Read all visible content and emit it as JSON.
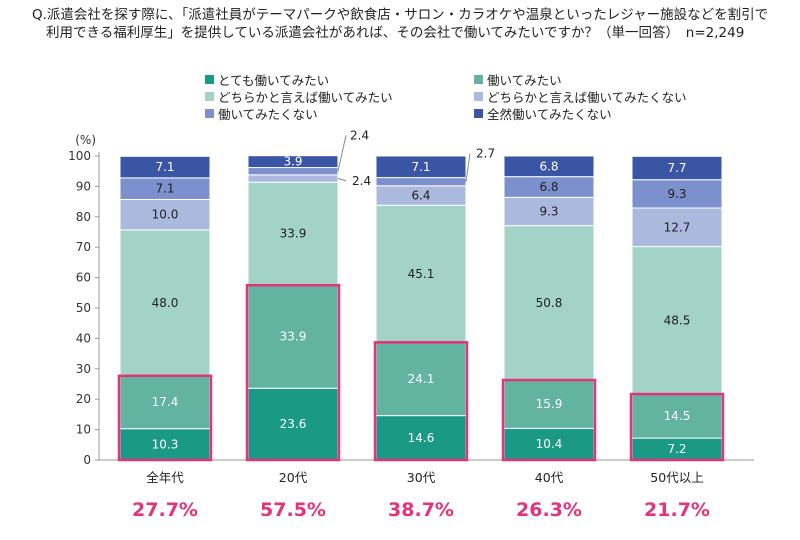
{
  "title": {
    "line1": "Q.派遣会社を探す際に、「派遣社員がテーマパークや飲食店・サロン・カラオケや温泉といったレジャー施設などを割引で",
    "line2": "利用できる福利厚生」を提供している派遣会社があれば、その会社で働いてみたいですか？（単一回答）　n=2,249"
  },
  "colors": {
    "s0": "#1a9985",
    "s1": "#62b4a0",
    "s2": "#a2d3c6",
    "s3": "#abb9df",
    "s4": "#7b90cc",
    "s5": "#3a55a4",
    "highlight": "#e4337a"
  },
  "chart_data": {
    "type": "bar",
    "stacked": true,
    "ylabel": "(%)",
    "ylim": [
      0,
      100
    ],
    "yticks": [
      0,
      10,
      20,
      30,
      40,
      50,
      60,
      70,
      80,
      90,
      100
    ],
    "categories": [
      "全年代",
      "20代",
      "30代",
      "40代",
      "50代以上"
    ],
    "series": [
      {
        "name": "とても働いてみたい",
        "values": [
          10.3,
          23.6,
          14.6,
          10.4,
          7.2
        ]
      },
      {
        "name": "働いてみたい",
        "values": [
          17.4,
          33.9,
          24.1,
          15.9,
          14.5
        ]
      },
      {
        "name": "どちらかと言えば働いてみたい",
        "values": [
          48.0,
          33.9,
          45.1,
          50.8,
          48.5
        ]
      },
      {
        "name": "どちらかと言えば働いてみたくない",
        "values": [
          10.0,
          2.4,
          6.4,
          9.3,
          12.7
        ]
      },
      {
        "name": "働いてみたくない",
        "values": [
          7.1,
          2.4,
          2.7,
          6.8,
          9.3
        ]
      },
      {
        "name": "全然働いてみたくない",
        "values": [
          7.1,
          3.9,
          7.1,
          6.8,
          7.7
        ]
      }
    ],
    "value_labels": [
      [
        "10.3",
        "17.4",
        "48.0",
        "10.0",
        "7.1",
        "7.1"
      ],
      [
        "23.6",
        "33.9",
        "33.9",
        "2.4",
        "2.4",
        "3.9"
      ],
      [
        "14.6",
        "24.1",
        "45.1",
        "6.4",
        "2.7",
        "7.1"
      ],
      [
        "10.4",
        "15.9",
        "50.8",
        "9.3",
        "6.8",
        "6.8"
      ],
      [
        "7.2",
        "14.5",
        "48.5",
        "12.7",
        "9.3",
        "7.7"
      ]
    ],
    "highlight_totals": [
      "27.7%",
      "57.5%",
      "38.7%",
      "26.3%",
      "21.7%"
    ],
    "legend_placement": "top"
  }
}
